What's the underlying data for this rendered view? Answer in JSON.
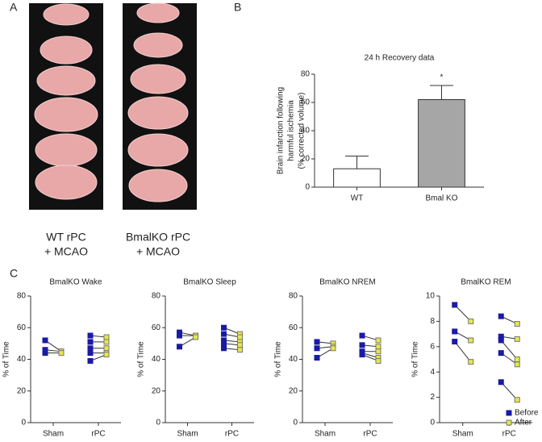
{
  "panel_labels": [
    "A",
    "B",
    "C"
  ],
  "panel_a": {
    "captions": [
      [
        "WT rPC",
        "+ MCAO"
      ],
      [
        "BmalKO rPC",
        "+ MCAO"
      ]
    ]
  },
  "chart_data": [
    {
      "type": "bar",
      "title": "24 h Recovery data",
      "ylabel": [
        "Brain infarction following",
        "harmful ischemia",
        "(% corrected volume)"
      ],
      "categories": [
        "WT",
        "Bmal KO"
      ],
      "values": [
        13,
        62
      ],
      "errors": [
        9,
        10
      ],
      "colors": [
        "#ffffff",
        "#a6a6a6"
      ],
      "annotation": "*",
      "ylim": [
        0,
        80
      ],
      "yticks": [
        0,
        20,
        40,
        60,
        80
      ]
    },
    {
      "type": "paired",
      "title": "BmalKO Wake",
      "ylabel": "% of Time",
      "categories": [
        "Sham",
        "rPC"
      ],
      "ylim": [
        0,
        80
      ],
      "yticks": [
        0,
        20,
        40,
        60,
        80
      ],
      "series": [
        {
          "color": "#1a1aa6",
          "values": [
            [
              52,
              46,
              44
            ],
            [
              55,
              51,
              47,
              44,
              39
            ]
          ]
        },
        {
          "color": "#e6e64a",
          "values": [
            [
              45,
              45,
              44
            ],
            [
              54,
              51,
              47,
              44,
              43
            ]
          ]
        }
      ]
    },
    {
      "type": "paired",
      "title": "BmalKO Sleep",
      "ylabel": "% of Time",
      "categories": [
        "Sham",
        "rPC"
      ],
      "ylim": [
        0,
        80
      ],
      "yticks": [
        0,
        20,
        40,
        60,
        80
      ],
      "series": [
        {
          "color": "#1a1aa6",
          "values": [
            [
              57,
              55,
              48
            ],
            [
              60,
              56,
              52,
              50,
              47
            ]
          ]
        },
        {
          "color": "#e6e64a",
          "values": [
            [
              55,
              55,
              54
            ],
            [
              56,
              54,
              51,
              49,
              46
            ]
          ]
        }
      ]
    },
    {
      "type": "paired",
      "title": "BmalKO NREM",
      "ylabel": "% of Time",
      "categories": [
        "Sham",
        "rPC"
      ],
      "ylim": [
        0,
        80
      ],
      "yticks": [
        0,
        20,
        40,
        60,
        80
      ],
      "series": [
        {
          "color": "#1a1aa6",
          "values": [
            [
              51,
              47,
              41
            ],
            [
              55,
              49,
              45,
              44,
              43
            ]
          ]
        },
        {
          "color": "#e6e64a",
          "values": [
            [
              50,
              48,
              47
            ],
            [
              52,
              48,
              45,
              41,
              39
            ]
          ]
        }
      ]
    },
    {
      "type": "paired",
      "title": "BmalKO REM",
      "ylabel": "% of Time",
      "categories": [
        "Sham",
        "rPC"
      ],
      "ylim": [
        0,
        10
      ],
      "yticks": [
        0,
        2,
        4,
        6,
        8,
        10
      ],
      "legend": "bottom-right",
      "series": [
        {
          "name": "Before",
          "color": "#1a1aa6",
          "values": [
            [
              9.3,
              7.2,
              6.4
            ],
            [
              8.4,
              6.8,
              6.5,
              5.5,
              3.2
            ]
          ]
        },
        {
          "name": "After",
          "color": "#e6e64a",
          "values": [
            [
              8.0,
              6.5,
              4.8
            ],
            [
              7.8,
              6.6,
              5.0,
              4.6,
              1.8
            ]
          ]
        }
      ]
    }
  ]
}
